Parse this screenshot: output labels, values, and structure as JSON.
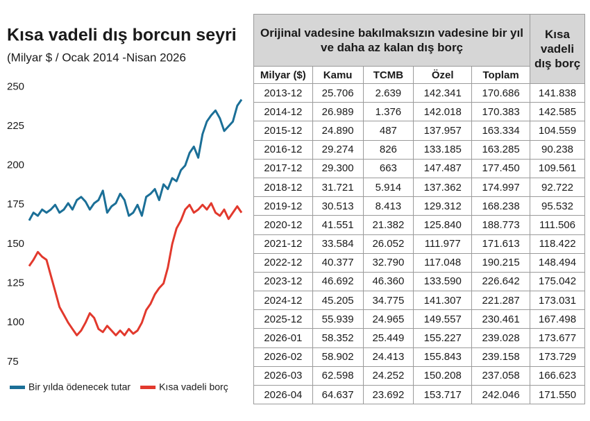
{
  "chart_data": {
    "type": "line",
    "title": "Kısa vadeli dış borcun seyri",
    "subtitle": "(Milyar $ / Ocak 2014 -Nisan 2026",
    "ylim": [
      67,
      255
    ],
    "yticks": [
      75,
      100,
      125,
      150,
      175,
      200,
      225,
      250
    ],
    "grid": false,
    "legend": "bottom",
    "series": [
      {
        "name": "Bir yılda ödenecek tutar",
        "color": "#1b6f97",
        "values": [
          165,
          170,
          168,
          172,
          170,
          172,
          175,
          170,
          172,
          176,
          172,
          178,
          180,
          177,
          172,
          176,
          178,
          184,
          170,
          174,
          176,
          182,
          178,
          168,
          170,
          175,
          168,
          180,
          182,
          185,
          178,
          188,
          185,
          192,
          190,
          197,
          200,
          208,
          212,
          205,
          220,
          228,
          232,
          235,
          230,
          222,
          225,
          228,
          238,
          242
        ]
      },
      {
        "name": "Kısa vadeli borç",
        "color": "#e2392d",
        "values": [
          136,
          140,
          145,
          142,
          140,
          130,
          120,
          110,
          105,
          100,
          96,
          92,
          95,
          100,
          106,
          103,
          96,
          94,
          98,
          95,
          92,
          95,
          92,
          96,
          93,
          95,
          100,
          108,
          112,
          118,
          122,
          125,
          135,
          150,
          160,
          165,
          172,
          175,
          170,
          172,
          175,
          172,
          176,
          170,
          168,
          172,
          166,
          170,
          174,
          170
        ]
      }
    ]
  },
  "table": {
    "header_title": "Orijinal vadesine bakılmaksızın vadesine bir yıl ve daha az kalan dış borç",
    "header_last": "Kısa vadeli dış borç",
    "columns": [
      "Milyar ($)",
      "Kamu",
      "TCMB",
      "Özel",
      "Toplam"
    ],
    "rows": [
      [
        "2013-12",
        "25.706",
        "2.639",
        "142.341",
        "170.686",
        "141.838"
      ],
      [
        "2014-12",
        "26.989",
        "1.376",
        "142.018",
        "170.383",
        "142.585"
      ],
      [
        "2015-12",
        "24.890",
        "487",
        "137.957",
        "163.334",
        "104.559"
      ],
      [
        "2016-12",
        "29.274",
        "826",
        "133.185",
        "163.285",
        "90.238"
      ],
      [
        "2017-12",
        "29.300",
        "663",
        "147.487",
        "177.450",
        "109.561"
      ],
      [
        "2018-12",
        "31.721",
        "5.914",
        "137.362",
        "174.997",
        "92.722"
      ],
      [
        "2019-12",
        "30.513",
        "8.413",
        "129.312",
        "168.238",
        "95.532"
      ],
      [
        "2020-12",
        "41.551",
        "21.382",
        "125.840",
        "188.773",
        "111.506"
      ],
      [
        "2021-12",
        "33.584",
        "26.052",
        "111.977",
        "171.613",
        "118.422"
      ],
      [
        "2022-12",
        "40.377",
        "32.790",
        "117.048",
        "190.215",
        "148.494"
      ],
      [
        "2023-12",
        "46.692",
        "46.360",
        "133.590",
        "226.642",
        "175.042"
      ],
      [
        "2024-12",
        "45.205",
        "34.775",
        "141.307",
        "221.287",
        "173.031"
      ],
      [
        "2025-12",
        "55.939",
        "24.965",
        "149.557",
        "230.461",
        "167.498"
      ],
      [
        "2026-01",
        "58.352",
        "25.449",
        "155.227",
        "239.028",
        "173.677"
      ],
      [
        "2026-02",
        "58.902",
        "24.413",
        "155.843",
        "239.158",
        "173.729"
      ],
      [
        "2026-03",
        "62.598",
        "24.252",
        "150.208",
        "237.058",
        "166.623"
      ],
      [
        "2026-04",
        "64.637",
        "23.692",
        "153.717",
        "242.046",
        "171.550"
      ]
    ]
  }
}
